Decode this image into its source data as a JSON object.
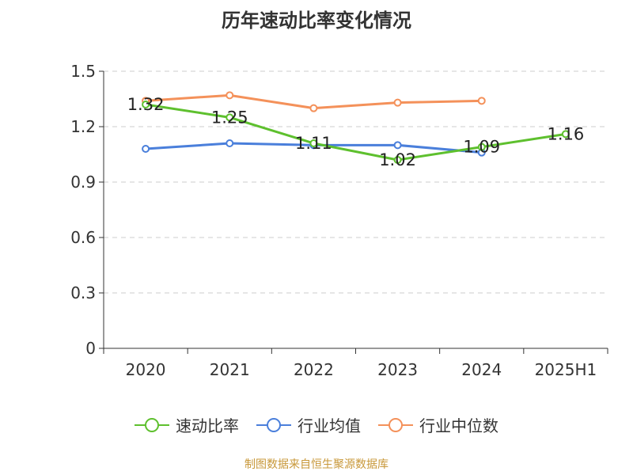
{
  "chart_data": {
    "type": "line",
    "title": "历年速动比率变化情况",
    "categories": [
      "2020",
      "2021",
      "2022",
      "2023",
      "2024",
      "2025H1"
    ],
    "y_ticks": [
      "0",
      "0.3",
      "0.6",
      "0.9",
      "1.2",
      "1.5"
    ],
    "ylim": [
      0,
      1.5
    ],
    "grid": true,
    "legend_position": "bottom",
    "series": [
      {
        "name": "速动比率",
        "color": "#5ec02e",
        "values": [
          1.32,
          1.25,
          1.11,
          1.02,
          1.09,
          1.16
        ],
        "labels": [
          "1.32",
          "1.25",
          "1.11",
          "1.02",
          "1.09",
          "1.16"
        ]
      },
      {
        "name": "行业均值",
        "color": "#4a7fdb",
        "values": [
          1.08,
          1.11,
          1.1,
          1.1,
          1.06,
          null
        ]
      },
      {
        "name": "行业中位数",
        "color": "#f4915a",
        "values": [
          1.34,
          1.37,
          1.3,
          1.33,
          1.34,
          null
        ]
      }
    ]
  },
  "source": "制图数据来自恒生聚源数据库"
}
